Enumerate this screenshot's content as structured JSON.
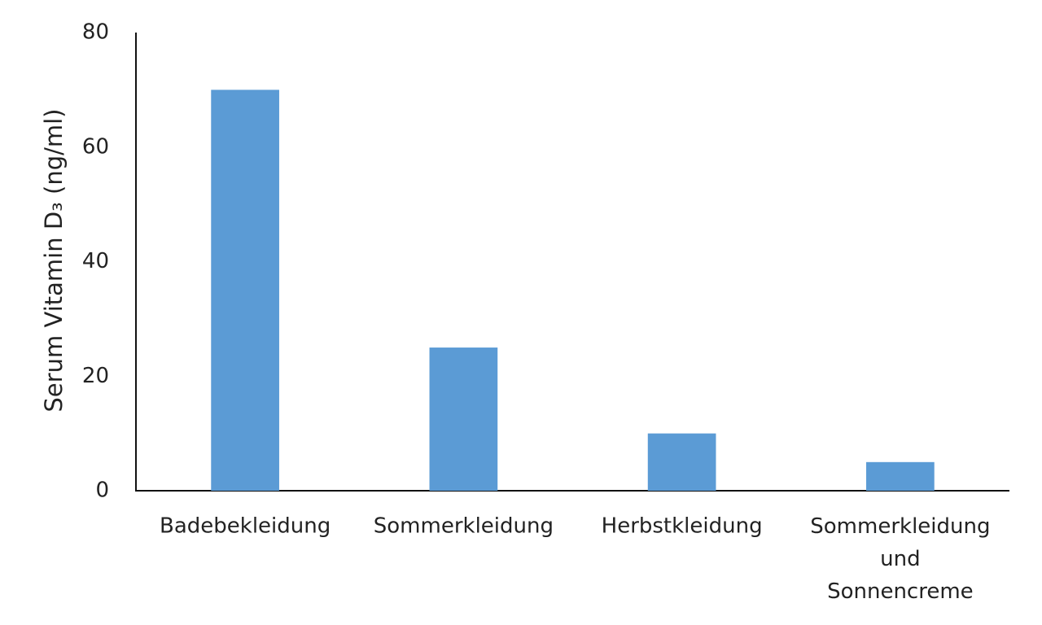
{
  "chart_data": {
    "type": "bar",
    "ylabel": "Serum Vitamin D₃ (ng/ml)",
    "categories": [
      "Badebekleidung",
      "Sommerkleidung",
      "Herbstkleidung",
      "Sommerkleidung und Sonnencreme"
    ],
    "values": [
      70,
      25,
      10,
      5
    ],
    "color": "#5b9bd5",
    "ylim": [
      0,
      80
    ],
    "yticks": [
      0,
      20,
      40,
      60,
      80
    ],
    "grid": false
  }
}
